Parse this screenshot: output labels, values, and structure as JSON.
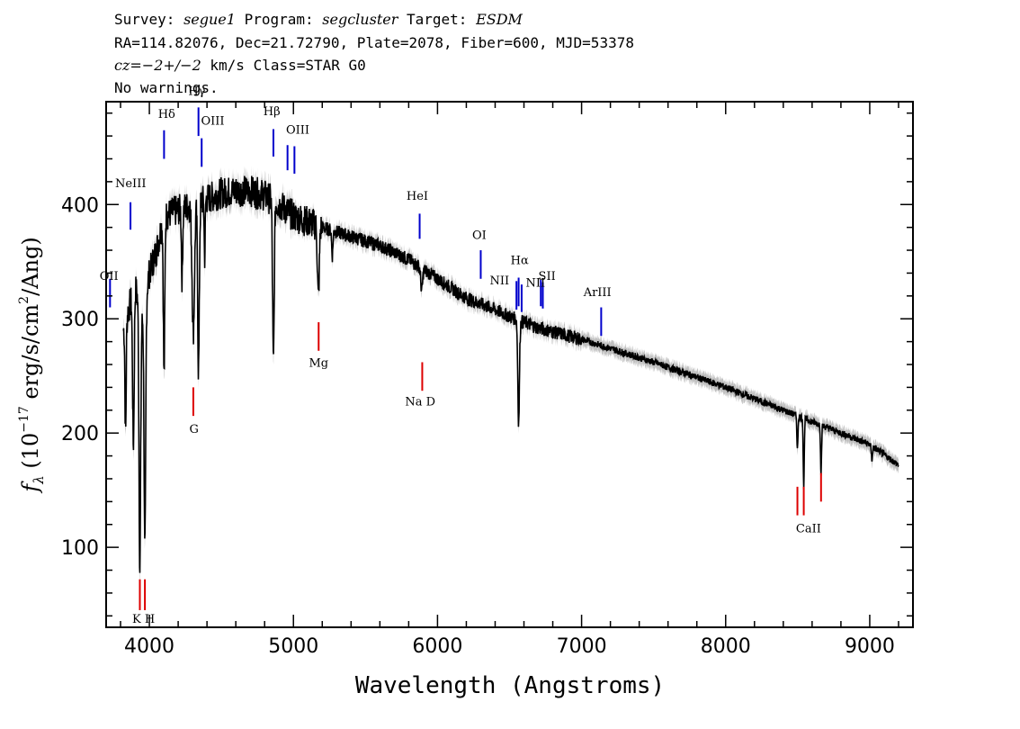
{
  "header": {
    "line1": {
      "survey_label": "Survey:",
      "survey": "segue1",
      "program_label": "Program:",
      "program": "segcluster",
      "target_label": "Target:",
      "target": "ESDM"
    },
    "line2": "RA=114.82076, Dec=21.72790, Plate=2078, Fiber=600, MJD=53378",
    "line3": {
      "cz": "cz=−2+/−2",
      "rest": " km/s Class=STAR G0"
    },
    "line4": "No warnings."
  },
  "chart_data": {
    "type": "line",
    "xlabel": "Wavelength (Angstroms)",
    "ylabel": "fλ (10⁻¹⁷ erg/s/cm²/Ang)",
    "xlim": [
      3700,
      9300
    ],
    "ylim": [
      30,
      490
    ],
    "x_ticks": [
      4000,
      5000,
      6000,
      7000,
      8000,
      9000
    ],
    "y_ticks": [
      100,
      200,
      300,
      400
    ],
    "grid": false,
    "colors": {
      "flux": "#000000",
      "error": "#b0b0b0",
      "emission": "#0000cc",
      "absorption": "#dd0000"
    },
    "continuum": [
      [
        3820,
        290
      ],
      [
        3900,
        330
      ],
      [
        3950,
        300
      ],
      [
        4000,
        340
      ],
      [
        4050,
        360
      ],
      [
        4100,
        390
      ],
      [
        4200,
        395
      ],
      [
        4300,
        400
      ],
      [
        4400,
        405
      ],
      [
        4500,
        410
      ],
      [
        4600,
        412
      ],
      [
        4700,
        412
      ],
      [
        4800,
        408
      ],
      [
        4900,
        400
      ],
      [
        5000,
        390
      ],
      [
        5100,
        385
      ],
      [
        5200,
        380
      ],
      [
        5400,
        372
      ],
      [
        5600,
        364
      ],
      [
        5800,
        352
      ],
      [
        6000,
        335
      ],
      [
        6200,
        318
      ],
      [
        6400,
        308
      ],
      [
        6500,
        302
      ],
      [
        6700,
        292
      ],
      [
        7000,
        282
      ],
      [
        7500,
        262
      ],
      [
        8000,
        240
      ],
      [
        8500,
        215
      ],
      [
        9000,
        190
      ],
      [
        9200,
        172
      ]
    ],
    "absorption_features": [
      [
        3934,
        80,
        8
      ],
      [
        3969,
        95,
        8
      ],
      [
        3889,
        190,
        8
      ],
      [
        3835,
        200,
        6
      ],
      [
        4102,
        250,
        7
      ],
      [
        4227,
        335,
        6
      ],
      [
        4305,
        290,
        12
      ],
      [
        4341,
        255,
        8
      ],
      [
        4384,
        355,
        5
      ],
      [
        4861,
        260,
        8
      ],
      [
        5173,
        318,
        9
      ],
      [
        5270,
        355,
        6
      ],
      [
        5890,
        325,
        9
      ],
      [
        6563,
        210,
        8
      ],
      [
        8498,
        185,
        5
      ],
      [
        8542,
        152,
        5
      ],
      [
        8662,
        165,
        5
      ],
      [
        9015,
        177,
        6
      ]
    ],
    "emission_lines": [
      {
        "label": "NeIII",
        "x": 3869,
        "y1": 378,
        "y2": 402
      },
      {
        "label": "Hδ",
        "x": 4102,
        "y1": 440,
        "y2": 465
      },
      {
        "label": "Hγ",
        "x": 4341,
        "y1": 460,
        "y2": 485
      },
      {
        "label": "OIII",
        "x": 4363,
        "y1": 433,
        "y2": 458
      },
      {
        "label": "Hβ",
        "x": 4861,
        "y1": 442,
        "y2": 466
      },
      {
        "label": "OIII",
        "x": 4959,
        "y1": 430,
        "y2": 452
      },
      {
        "label": "OIII",
        "x": 5007,
        "y1": 427,
        "y2": 451
      },
      {
        "label": "HeI",
        "x": 5876,
        "y1": 370,
        "y2": 392
      },
      {
        "label": "OI",
        "x": 6300,
        "y1": 335,
        "y2": 360
      },
      {
        "label": "NII",
        "x": 6548,
        "y1": 308,
        "y2": 333
      },
      {
        "label": "Hα",
        "x": 6563,
        "y1": 311,
        "y2": 336
      },
      {
        "label": "NII",
        "x": 6584,
        "y1": 306,
        "y2": 330
      },
      {
        "label": "SII",
        "x": 6717,
        "y1": 311,
        "y2": 334
      },
      {
        "label": "SII",
        "x": 6731,
        "y1": 309,
        "y2": 332
      },
      {
        "label": "ArIII",
        "x": 7136,
        "y1": 285,
        "y2": 310
      },
      {
        "label": "OII",
        "x": 3727,
        "y1": 310,
        "y2": 335
      }
    ],
    "absorption_lines": [
      {
        "label": "K",
        "x": 3934,
        "y1": 45,
        "y2": 72
      },
      {
        "label": "H",
        "x": 3969,
        "y1": 45,
        "y2": 72
      },
      {
        "label": "G",
        "x": 4305,
        "y1": 215,
        "y2": 240
      },
      {
        "label": "Mg",
        "x": 5175,
        "y1": 272,
        "y2": 297
      },
      {
        "label": "Na D",
        "x": 5894,
        "y1": 237,
        "y2": 262
      },
      {
        "label": "CaII",
        "x": 8498,
        "y1": 128,
        "y2": 153
      },
      {
        "label": "CaII",
        "x": 8542,
        "y1": 128,
        "y2": 153
      },
      {
        "label": "CaII",
        "x": 8662,
        "y1": 140,
        "y2": 165
      }
    ],
    "line_labels": [
      {
        "text": "NeIII",
        "x": 3870,
        "y": 415
      },
      {
        "text": "Hδ",
        "x": 4120,
        "y": 476
      },
      {
        "text": "Hγ",
        "x": 4330,
        "y": 496
      },
      {
        "text": "OIII",
        "x": 4440,
        "y": 470
      },
      {
        "text": "Hβ",
        "x": 4850,
        "y": 478
      },
      {
        "text": "OIII",
        "x": 5030,
        "y": 462
      },
      {
        "text": "HeI",
        "x": 5860,
        "y": 404
      },
      {
        "text": "OI",
        "x": 6290,
        "y": 370
      },
      {
        "text": "NII",
        "x": 6430,
        "y": 330
      },
      {
        "text": "Hα",
        "x": 6570,
        "y": 348
      },
      {
        "text": "NII",
        "x": 6680,
        "y": 328
      },
      {
        "text": "SII",
        "x": 6760,
        "y": 334
      },
      {
        "text": "ArIII",
        "x": 7110,
        "y": 320
      },
      {
        "text": "OII",
        "x": 3720,
        "y": 334
      },
      {
        "text": "G",
        "x": 4310,
        "y": 200
      },
      {
        "text": "Mg",
        "x": 5175,
        "y": 258
      },
      {
        "text": "Na D",
        "x": 5880,
        "y": 224
      },
      {
        "text": "CaII",
        "x": 8575,
        "y": 113
      },
      {
        "text": "K H",
        "x": 3960,
        "y": 34
      }
    ]
  }
}
